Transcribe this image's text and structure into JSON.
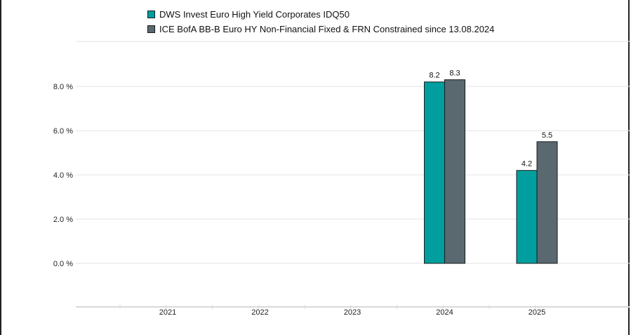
{
  "chart_data": {
    "type": "bar",
    "categories": [
      "2021",
      "2022",
      "2023",
      "2024",
      "2025"
    ],
    "series": [
      {
        "name": "DWS Invest Euro High Yield Corporates IDQ50",
        "color": "#009e9e",
        "values": [
          null,
          null,
          null,
          8.2,
          4.2
        ],
        "labels": [
          "",
          "",
          "",
          "8.2",
          "4.2"
        ]
      },
      {
        "name": "ICE BofA BB-B Euro HY Non-Financial Fixed & FRN Constrained since 13.08.2024",
        "color": "#5a6870",
        "values": [
          null,
          null,
          null,
          8.3,
          5.5
        ],
        "labels": [
          "",
          "",
          "",
          "8.3",
          "5.5"
        ]
      }
    ],
    "yticks": [
      0,
      2,
      4,
      6,
      8
    ],
    "ytick_labels": [
      "0.0 %",
      "2.0 %",
      "4.0 %",
      "6.0 %",
      "8.0 %"
    ],
    "ylim": [
      -2,
      10
    ],
    "grid": true,
    "legend_position": "top-left"
  }
}
